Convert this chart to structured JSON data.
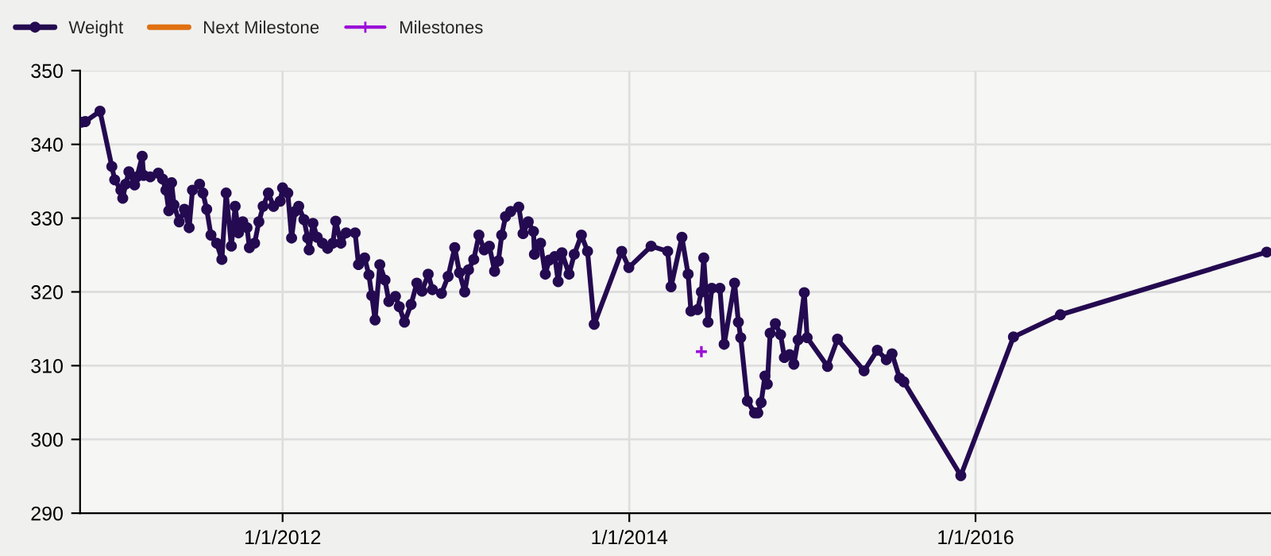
{
  "chart_data": {
    "type": "line",
    "xlim": [
      "2010-10-31",
      "2017-09-15"
    ],
    "xticks": [
      {
        "value": "2012-01-01",
        "label": "1/1/2012"
      },
      {
        "value": "2014-01-01",
        "label": "1/1/2014"
      },
      {
        "value": "2016-01-01",
        "label": "1/1/2016"
      }
    ],
    "ylim": [
      290,
      350
    ],
    "yticks": [
      290,
      300,
      310,
      320,
      330,
      340,
      350
    ],
    "grid": true,
    "legend": "top left",
    "line_style": "solid",
    "series": [
      {
        "name": "Weight",
        "color": "#240a50",
        "marker": "circle",
        "x": [
          "2010-11-03",
          "2010-11-11",
          "2010-12-12",
          "2011-01-06",
          "2011-01-12",
          "2011-01-25",
          "2011-01-29",
          "2011-02-04",
          "2011-02-11",
          "2011-02-23",
          "2011-02-28",
          "2011-03-11",
          "2011-03-14",
          "2011-03-28",
          "2011-04-14",
          "2011-04-23",
          "2011-04-30",
          "2011-05-06",
          "2011-05-12",
          "2011-05-17",
          "2011-05-28",
          "2011-06-08",
          "2011-06-18",
          "2011-06-25",
          "2011-07-10",
          "2011-07-17",
          "2011-07-25",
          "2011-08-03",
          "2011-08-15",
          "2011-08-26",
          "2011-09-04",
          "2011-09-15",
          "2011-09-23",
          "2011-09-30",
          "2011-10-09",
          "2011-10-18",
          "2011-10-23",
          "2011-11-03",
          "2011-11-12",
          "2011-11-21",
          "2011-12-02",
          "2011-12-13",
          "2011-12-27",
          "2012-01-01",
          "2012-01-12",
          "2012-01-20",
          "2012-01-27",
          "2012-02-04",
          "2012-02-15",
          "2012-02-23",
          "2012-02-26",
          "2012-03-05",
          "2012-03-14",
          "2012-03-25",
          "2012-04-05",
          "2012-04-16",
          "2012-04-22",
          "2012-05-03",
          "2012-05-14",
          "2012-06-02",
          "2012-06-09",
          "2012-06-22",
          "2012-07-01",
          "2012-07-07",
          "2012-07-14",
          "2012-07-24",
          "2012-08-04",
          "2012-08-12",
          "2012-08-26",
          "2012-09-03",
          "2012-09-14",
          "2012-09-28",
          "2012-10-10",
          "2012-10-21",
          "2012-11-03",
          "2012-11-12",
          "2012-12-01",
          "2012-12-15",
          "2012-12-29",
          "2013-01-08",
          "2013-01-19",
          "2013-01-27",
          "2013-02-07",
          "2013-02-18",
          "2013-03-01",
          "2013-03-12",
          "2013-03-23",
          "2013-03-31",
          "2013-04-07",
          "2013-04-15",
          "2013-04-26",
          "2013-05-13",
          "2013-05-22",
          "2013-06-02",
          "2013-06-13",
          "2013-06-15",
          "2013-06-28",
          "2013-07-08",
          "2013-07-16",
          "2013-07-28",
          "2013-08-04",
          "2013-08-12",
          "2013-08-27",
          "2013-09-07",
          "2013-09-22",
          "2013-10-05",
          "2013-10-19",
          "2013-12-16",
          "2013-12-31",
          "2014-02-16",
          "2014-03-23",
          "2014-03-30",
          "2014-04-22",
          "2014-05-05",
          "2014-05-11",
          "2014-05-25",
          "2014-06-02",
          "2014-06-07",
          "2014-06-16",
          "2014-06-24",
          "2014-07-11",
          "2014-07-20",
          "2014-08-11",
          "2014-08-19",
          "2014-08-24",
          "2014-09-07",
          "2014-09-22",
          "2014-09-29",
          "2014-10-06",
          "2014-10-14",
          "2014-10-19",
          "2014-10-25",
          "2014-11-05",
          "2014-11-16",
          "2014-11-24",
          "2014-12-05",
          "2014-12-14",
          "2014-12-23",
          "2015-01-05",
          "2015-01-11",
          "2015-02-23",
          "2015-03-16",
          "2015-05-11",
          "2015-06-08",
          "2015-06-27",
          "2015-07-09",
          "2015-07-25",
          "2015-08-03",
          "2015-12-01",
          "2016-03-21",
          "2016-06-28",
          "2017-09-06"
        ],
        "values": [
          343.0,
          343.1,
          344.5,
          337.0,
          335.2,
          333.8,
          332.7,
          334.6,
          336.3,
          334.5,
          335.6,
          338.4,
          335.8,
          335.6,
          336.1,
          335.3,
          333.8,
          331.0,
          334.8,
          331.8,
          329.5,
          331.2,
          328.7,
          333.8,
          334.6,
          333.4,
          331.2,
          327.7,
          326.6,
          324.4,
          333.4,
          326.2,
          331.6,
          328.0,
          329.5,
          328.7,
          326.0,
          326.6,
          329.5,
          331.6,
          333.4,
          331.6,
          332.3,
          334.1,
          333.4,
          327.3,
          330.9,
          331.6,
          329.8,
          327.3,
          325.7,
          329.3,
          327.4,
          326.6,
          325.9,
          326.6,
          329.6,
          326.6,
          328.0,
          328.0,
          323.7,
          324.6,
          322.3,
          319.5,
          316.2,
          323.7,
          321.6,
          318.7,
          319.4,
          318.0,
          315.9,
          318.3,
          321.2,
          320.1,
          322.4,
          320.3,
          319.8,
          322.1,
          326.0,
          322.6,
          320.0,
          323.0,
          324.4,
          327.7,
          325.7,
          326.2,
          322.8,
          324.2,
          327.7,
          330.2,
          330.9,
          331.5,
          327.9,
          329.5,
          328.2,
          325.1,
          326.6,
          322.4,
          324.3,
          324.8,
          321.4,
          325.3,
          322.4,
          325.1,
          327.7,
          325.5,
          315.6,
          325.5,
          323.3,
          326.2,
          325.5,
          320.7,
          327.4,
          322.4,
          317.4,
          317.6,
          320.0,
          324.6,
          315.9,
          320.5,
          320.5,
          312.9,
          321.2,
          315.9,
          313.8,
          305.2,
          303.6,
          303.6,
          305.0,
          308.6,
          307.5,
          314.4,
          315.7,
          314.2,
          311.1,
          311.5,
          310.2,
          313.5,
          319.9,
          313.8,
          309.9,
          313.6,
          309.3,
          312.1,
          310.8,
          311.6,
          308.3,
          307.8,
          295.1,
          313.9,
          316.9,
          325.4
        ]
      },
      {
        "name": "Next Milestone",
        "color": "#e07010",
        "marker": "none"
      },
      {
        "name": "Milestones",
        "color": "#9a10d8",
        "type": "scatter",
        "marker": "cross",
        "x": [
          "2014-06-02"
        ],
        "values": [
          311.9
        ]
      }
    ]
  }
}
